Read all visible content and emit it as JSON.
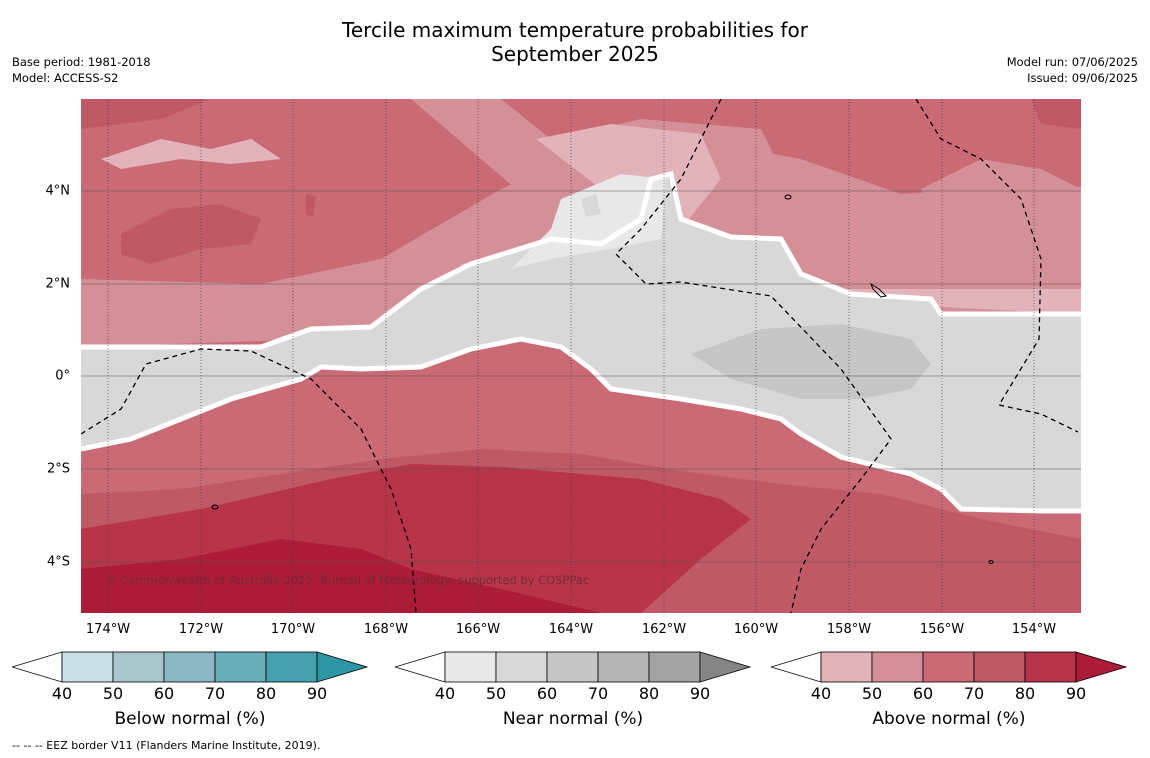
{
  "header": {
    "title_line1": "Tercile maximum temperature probabilities for",
    "title_line2": "September 2025",
    "base_period": "Base period: 1981-2018",
    "model": "Model: ACCESS-S2",
    "model_run": "Model run: 07/06/2025",
    "issued": "Issued: 09/06/2025"
  },
  "map": {
    "lat_labels": [
      "4°N",
      "2°N",
      "0°",
      "2°S",
      "4°S"
    ],
    "lon_labels": [
      "174°W",
      "172°W",
      "170°W",
      "168°W",
      "166°W",
      "164°W",
      "162°W",
      "160°W",
      "158°W",
      "156°W",
      "154°W"
    ],
    "copyright": "© Commonwealth of Australia 2025, Bureau of Meteorology, supported by COSPPac"
  },
  "colorbars": [
    {
      "title": "Below normal (%)",
      "ticks": [
        "40",
        "50",
        "60",
        "70",
        "80",
        "90"
      ],
      "colors": [
        "#ffffff",
        "#c9e0e7",
        "#a8c6cc",
        "#8bb8c4",
        "#6aaebb",
        "#47a0ae",
        "#2d95a6"
      ]
    },
    {
      "title": "Near normal (%)",
      "ticks": [
        "40",
        "50",
        "60",
        "70",
        "80",
        "90"
      ],
      "colors": [
        "#ffffff",
        "#e8e8e8",
        "#d8d8d8",
        "#c6c6c6",
        "#b4b4b4",
        "#a3a3a3",
        "#858585"
      ]
    },
    {
      "title": "Above normal (%)",
      "ticks": [
        "40",
        "50",
        "60",
        "70",
        "80",
        "90"
      ],
      "colors": [
        "#ffffff",
        "#e2b4ba",
        "#d48f97",
        "#c96a74",
        "#c05966",
        "#b83449",
        "#ac1c39"
      ]
    }
  ],
  "footnote": "--  --  -- EEZ border V11 (Flanders Marine Institute, 2019)."
}
